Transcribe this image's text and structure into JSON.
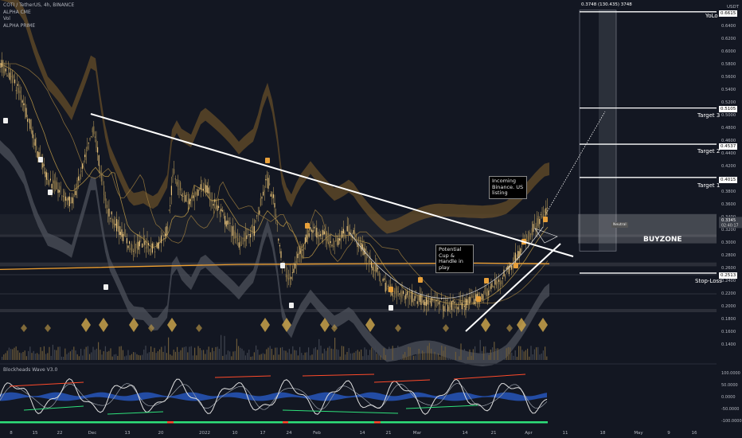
{
  "header": {
    "symbol": "COTI / TetherUS, 4h, BINANCE",
    "indicators": [
      "ALPHA CME",
      "Vol",
      "ALPHA PRIME"
    ]
  },
  "oscillator": {
    "title": "Blockheads Wave V3.0"
  },
  "annotations": {
    "listing_note": "Incoming Binance. US listing",
    "cup_note": "Potential Cup & Handle in play",
    "projection_info": "0.3748 (130.435) 3748",
    "buyzone": "BUYZONE",
    "neutral": "Neutral"
  },
  "levels": [
    {
      "name": "YoLo",
      "value": "0.6615"
    },
    {
      "name": "Target 3",
      "value": "0.5105"
    },
    {
      "name": "Target 2",
      "value": "0.4537"
    },
    {
      "name": "Target 1",
      "value": "0.4015"
    },
    {
      "name": "Stop-Loss",
      "value": "0.2513"
    }
  ],
  "colors": {
    "background": "#131722",
    "candle": "#e0b050",
    "white_line": "#ffffff",
    "ma_orange": "#f0a030",
    "band_gold": "#7a5a2a",
    "band_grey": "#4a4e58",
    "wave_white": "#e0e0e0",
    "wave_green": "#2ee07a",
    "wave_red": "#ff4a2a",
    "wave_blue": "#2a5fd0"
  },
  "chart_data": {
    "type": "candlestick",
    "ylim": [
      0.13,
      0.67
    ],
    "y_axis_unit": "USDT",
    "x_tick_labels": [
      "8",
      "15",
      "22",
      "Dec",
      "13",
      "20",
      "2022",
      "10",
      "17",
      "24",
      "Feb",
      "14",
      "21",
      "Mar",
      "14",
      "21",
      "Apr",
      "11",
      "18",
      "May",
      "9",
      "16"
    ],
    "y_tick_labels": [
      "0.6600",
      "0.6400",
      "0.6200",
      "0.6000",
      "0.5800",
      "0.5600",
      "0.5400",
      "0.5200",
      "0.5000",
      "0.4800",
      "0.4600",
      "0.4400",
      "0.4200",
      "0.4000",
      "0.3800",
      "0.3600",
      "0.3400",
      "0.3200",
      "0.3000",
      "0.2800",
      "0.2600",
      "0.2400",
      "0.2200",
      "0.2000",
      "0.1800",
      "0.1600",
      "0.1400"
    ],
    "current_price_label": "0.3345",
    "countdown_label": "02:40:17",
    "price_path": [
      [
        0,
        0.58
      ],
      [
        15,
        0.56
      ],
      [
        30,
        0.52
      ],
      [
        45,
        0.45
      ],
      [
        60,
        0.4
      ],
      [
        75,
        0.38
      ],
      [
        90,
        0.36
      ],
      [
        105,
        0.42
      ],
      [
        118,
        0.48
      ],
      [
        125,
        0.42
      ],
      [
        135,
        0.35
      ],
      [
        150,
        0.32
      ],
      [
        165,
        0.29
      ],
      [
        180,
        0.3
      ],
      [
        195,
        0.29
      ],
      [
        210,
        0.32
      ],
      [
        218,
        0.41
      ],
      [
        228,
        0.38
      ],
      [
        240,
        0.36
      ],
      [
        255,
        0.39
      ],
      [
        270,
        0.36
      ],
      [
        285,
        0.33
      ],
      [
        300,
        0.3
      ],
      [
        320,
        0.32
      ],
      [
        335,
        0.4
      ],
      [
        345,
        0.36
      ],
      [
        355,
        0.26
      ],
      [
        365,
        0.24
      ],
      [
        375,
        0.28
      ],
      [
        390,
        0.32
      ],
      [
        405,
        0.31
      ],
      [
        420,
        0.3
      ],
      [
        440,
        0.32
      ],
      [
        455,
        0.29
      ],
      [
        470,
        0.26
      ],
      [
        485,
        0.23
      ],
      [
        500,
        0.22
      ],
      [
        515,
        0.215
      ],
      [
        530,
        0.21
      ],
      [
        545,
        0.205
      ],
      [
        560,
        0.2
      ],
      [
        575,
        0.2
      ],
      [
        590,
        0.205
      ],
      [
        605,
        0.215
      ],
      [
        620,
        0.23
      ],
      [
        635,
        0.25
      ],
      [
        650,
        0.28
      ],
      [
        665,
        0.31
      ],
      [
        675,
        0.33
      ],
      [
        686,
        0.345
      ]
    ],
    "oscillator_ylim": [
      -100,
      100
    ],
    "oscillator_tick_labels": [
      "100.0000",
      "50.0000",
      "0.0000",
      "-50.0000",
      "-100.0000"
    ]
  }
}
